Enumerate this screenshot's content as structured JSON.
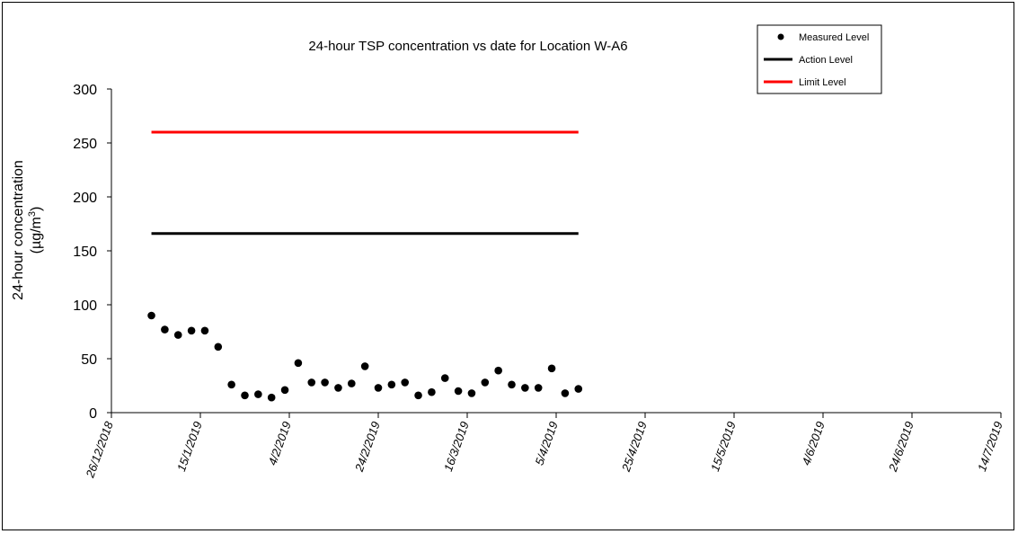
{
  "chart_data": {
    "type": "scatter",
    "title": "24-hour TSP concentration vs date for Location W-A6",
    "ylabel": "24-hour concentration",
    "ylabel_unit_prefix": "(µg/m",
    "ylabel_unit_sup": "3",
    "ylabel_unit_suffix": ")",
    "xlabel": "",
    "ylim": [
      0,
      300
    ],
    "yticks": [
      0,
      50,
      100,
      150,
      200,
      250,
      300
    ],
    "xlim": [
      "2018-12-26",
      "2019-07-14"
    ],
    "xticks": [
      {
        "date": "2018-12-26",
        "label": "26/12/2018"
      },
      {
        "date": "2019-01-15",
        "label": "15/1/2019"
      },
      {
        "date": "2019-02-04",
        "label": "4/2/2019"
      },
      {
        "date": "2019-02-24",
        "label": "24/2/2019"
      },
      {
        "date": "2019-03-16",
        "label": "16/3/2019"
      },
      {
        "date": "2019-04-05",
        "label": "5/4/2019"
      },
      {
        "date": "2019-04-25",
        "label": "25/4/2019"
      },
      {
        "date": "2019-05-15",
        "label": "15/5/2019"
      },
      {
        "date": "2019-06-04",
        "label": "4/6/2019"
      },
      {
        "date": "2019-06-24",
        "label": "24/6/2019"
      },
      {
        "date": "2019-07-14",
        "label": "14/7/2019"
      }
    ],
    "grid": false,
    "legend_position": "top-right",
    "series": [
      {
        "name": "Measured Level",
        "kind": "markers",
        "color": "#000000",
        "points": [
          {
            "x": "2019-01-04",
            "y": 90
          },
          {
            "x": "2019-01-07",
            "y": 77
          },
          {
            "x": "2019-01-10",
            "y": 72
          },
          {
            "x": "2019-01-13",
            "y": 76
          },
          {
            "x": "2019-01-16",
            "y": 76
          },
          {
            "x": "2019-01-19",
            "y": 61
          },
          {
            "x": "2019-01-22",
            "y": 26
          },
          {
            "x": "2019-01-25",
            "y": 16
          },
          {
            "x": "2019-01-28",
            "y": 17
          },
          {
            "x": "2019-01-31",
            "y": 14
          },
          {
            "x": "2019-02-03",
            "y": 21
          },
          {
            "x": "2019-02-06",
            "y": 46
          },
          {
            "x": "2019-02-09",
            "y": 28
          },
          {
            "x": "2019-02-12",
            "y": 28
          },
          {
            "x": "2019-02-15",
            "y": 23
          },
          {
            "x": "2019-02-18",
            "y": 27
          },
          {
            "x": "2019-02-21",
            "y": 43
          },
          {
            "x": "2019-02-24",
            "y": 23
          },
          {
            "x": "2019-02-27",
            "y": 26
          },
          {
            "x": "2019-03-02",
            "y": 28
          },
          {
            "x": "2019-03-05",
            "y": 16
          },
          {
            "x": "2019-03-08",
            "y": 19
          },
          {
            "x": "2019-03-11",
            "y": 32
          },
          {
            "x": "2019-03-14",
            "y": 20
          },
          {
            "x": "2019-03-17",
            "y": 18
          },
          {
            "x": "2019-03-20",
            "y": 28
          },
          {
            "x": "2019-03-23",
            "y": 39
          },
          {
            "x": "2019-03-26",
            "y": 26
          },
          {
            "x": "2019-03-29",
            "y": 23
          },
          {
            "x": "2019-04-01",
            "y": 23
          },
          {
            "x": "2019-04-04",
            "y": 41
          },
          {
            "x": "2019-04-07",
            "y": 18
          },
          {
            "x": "2019-04-10",
            "y": 22
          }
        ]
      },
      {
        "name": "Action Level",
        "kind": "line",
        "color": "#000000",
        "x": [
          "2019-01-04",
          "2019-04-10"
        ],
        "y": [
          166,
          166
        ]
      },
      {
        "name": "Limit Level",
        "kind": "line",
        "color": "#ff0000",
        "x": [
          "2019-01-04",
          "2019-04-10"
        ],
        "y": [
          260,
          260
        ]
      }
    ]
  }
}
